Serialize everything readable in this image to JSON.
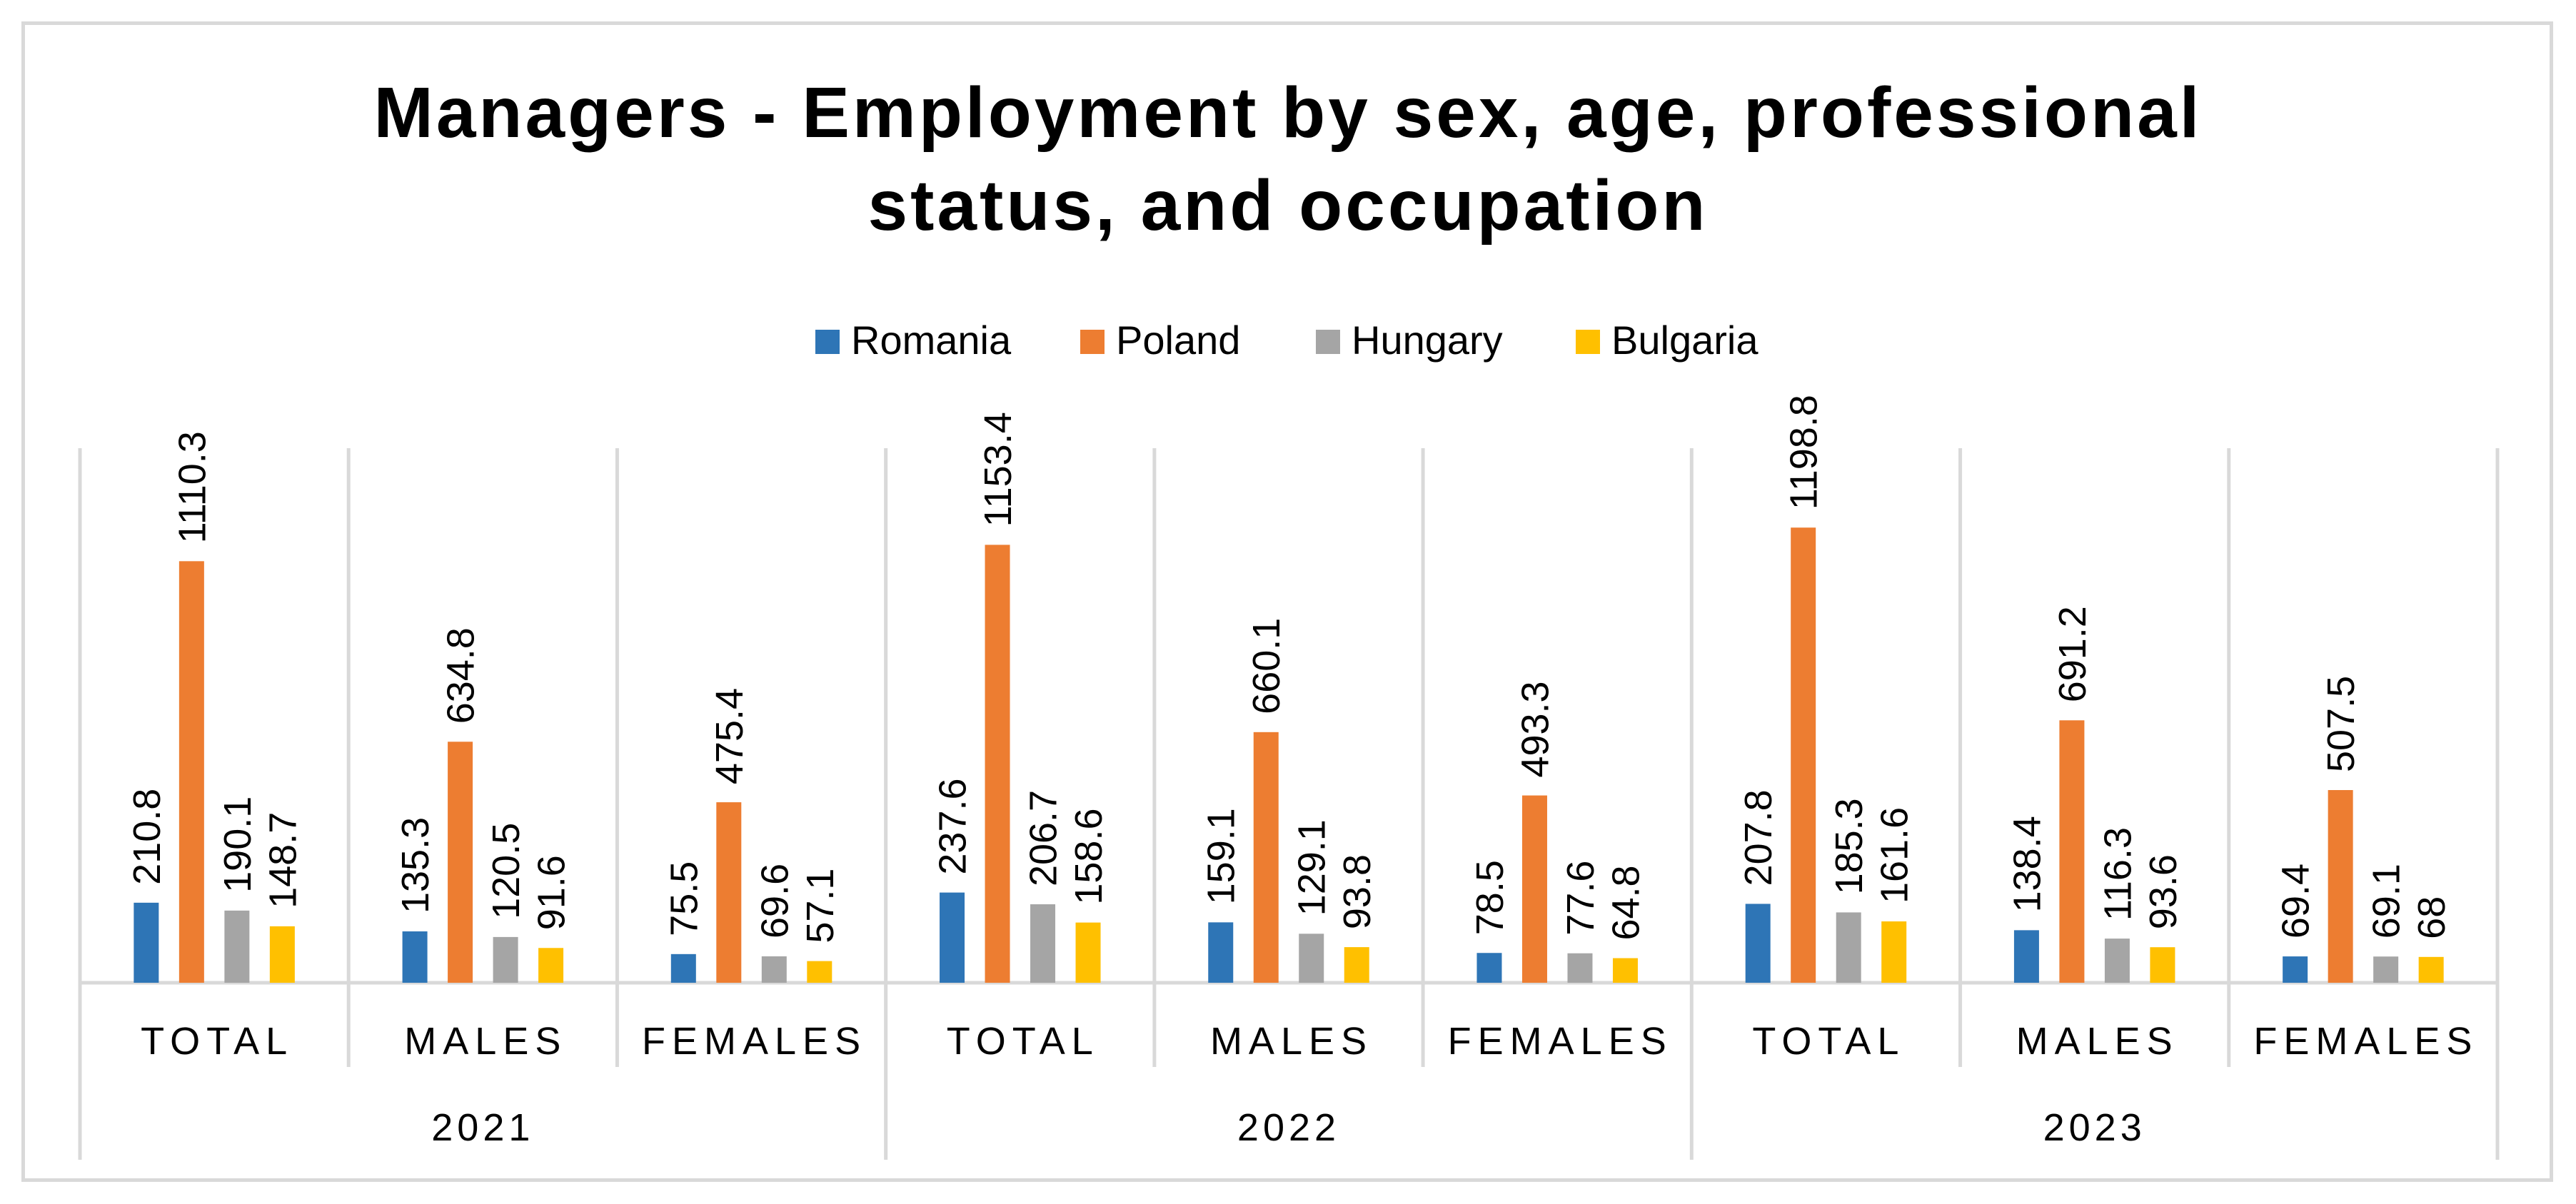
{
  "chart_data": {
    "type": "bar",
    "title": [
      "Managers - Employment by sex, age, professional",
      "status, and occupation"
    ],
    "legend_position": "top-center",
    "groups": [
      {
        "year": "2021",
        "categories": [
          "TOTAL",
          "MALES",
          "FEMALES"
        ]
      },
      {
        "year": "2022",
        "categories": [
          "TOTAL",
          "MALES",
          "FEMALES"
        ]
      },
      {
        "year": "2023",
        "categories": [
          "TOTAL",
          "MALES",
          "FEMALES"
        ]
      }
    ],
    "series": [
      {
        "name": "Romania",
        "color": "#2e75b6",
        "values": [
          210.8,
          135.3,
          75.5,
          237.6,
          159.1,
          78.5,
          207.8,
          138.4,
          69.4
        ]
      },
      {
        "name": "Poland",
        "color": "#ed7d31",
        "values": [
          1110.3,
          634.8,
          475.4,
          1153.4,
          660.1,
          493.3,
          1198.8,
          691.2,
          507.5
        ]
      },
      {
        "name": "Hungary",
        "color": "#a5a5a5",
        "values": [
          190.1,
          120.5,
          69.6,
          206.7,
          129.1,
          77.6,
          185.3,
          116.3,
          69.1
        ]
      },
      {
        "name": "Bulgaria",
        "color": "#ffc000",
        "values": [
          148.7,
          91.6,
          57.1,
          158.6,
          93.8,
          64.8,
          161.6,
          93.6,
          68
        ]
      }
    ],
    "ylim": [
      0,
      1400
    ],
    "grid": false,
    "data_labels": true
  }
}
